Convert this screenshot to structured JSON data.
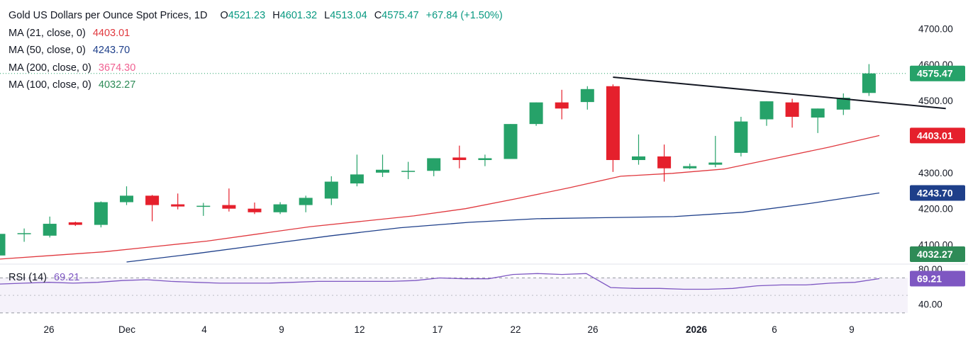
{
  "header": {
    "title": "Gold US Dollars per Ounce Spot Prices, 1D",
    "open_label": "O",
    "open": "4521.23",
    "high_label": "H",
    "high": "4601.32",
    "low_label": "L",
    "low": "4513.04",
    "close_label": "C",
    "close": "4575.47",
    "change": "+67.84 (+1.50%)"
  },
  "moving_averages": [
    {
      "label": "MA (21, close, 0)",
      "value": "4403.01",
      "color": "#e0383e"
    },
    {
      "label": "MA (50, close, 0)",
      "value": "4243.70",
      "color": "#1e3f8a"
    },
    {
      "label": "MA (200, close, 0)",
      "value": "3674.30",
      "color": "#f06292"
    },
    {
      "label": "MA (100, close, 0)",
      "value": "4032.27",
      "color": "#2e8b57"
    }
  ],
  "rsi": {
    "label": "RSI (14)",
    "value": "69.21",
    "color": "#7e57c2"
  },
  "chart_data": {
    "type": "candlestick",
    "title": "Gold US Dollars per Ounce Spot Prices, 1D",
    "up_color": "#26a269",
    "down_color": "#e5202c",
    "price_axis": {
      "ticks": [
        "4100.00",
        "4200.00",
        "4300.00",
        "4400.00",
        "4500.00",
        "4600.00",
        "4700.00"
      ],
      "range": [
        4048,
        4740
      ]
    },
    "time_axis": {
      "ticks": [
        "26",
        "Dec",
        "4",
        "9",
        "12",
        "17",
        "22",
        "26",
        "2026",
        "6",
        "9"
      ]
    },
    "candles": [
      {
        "o": 4070,
        "h": 4130,
        "l": 4065,
        "c": 4130
      },
      {
        "o": 4132,
        "h": 4145,
        "l": 4108,
        "c": 4132
      },
      {
        "o": 4125,
        "h": 4178,
        "l": 4120,
        "c": 4158
      },
      {
        "o": 4162,
        "h": 4164,
        "l": 4152,
        "c": 4155
      },
      {
        "o": 4155,
        "h": 4220,
        "l": 4148,
        "c": 4218
      },
      {
        "o": 4218,
        "h": 4262,
        "l": 4210,
        "c": 4236
      },
      {
        "o": 4236,
        "h": 4238,
        "l": 4165,
        "c": 4210
      },
      {
        "o": 4212,
        "h": 4242,
        "l": 4198,
        "c": 4206
      },
      {
        "o": 4206,
        "h": 4216,
        "l": 4180,
        "c": 4208
      },
      {
        "o": 4210,
        "h": 4256,
        "l": 4192,
        "c": 4200
      },
      {
        "o": 4200,
        "h": 4217,
        "l": 4185,
        "c": 4190
      },
      {
        "o": 4190,
        "h": 4218,
        "l": 4185,
        "c": 4212
      },
      {
        "o": 4210,
        "h": 4236,
        "l": 4190,
        "c": 4230
      },
      {
        "o": 4228,
        "h": 4290,
        "l": 4210,
        "c": 4275
      },
      {
        "o": 4270,
        "h": 4350,
        "l": 4262,
        "c": 4295
      },
      {
        "o": 4300,
        "h": 4350,
        "l": 4288,
        "c": 4308
      },
      {
        "o": 4302,
        "h": 4330,
        "l": 4282,
        "c": 4305
      },
      {
        "o": 4305,
        "h": 4340,
        "l": 4290,
        "c": 4340
      },
      {
        "o": 4342,
        "h": 4375,
        "l": 4312,
        "c": 4335
      },
      {
        "o": 4335,
        "h": 4350,
        "l": 4318,
        "c": 4340
      },
      {
        "o": 4338,
        "h": 4435,
        "l": 4338,
        "c": 4435
      },
      {
        "o": 4435,
        "h": 4495,
        "l": 4430,
        "c": 4495
      },
      {
        "o": 4495,
        "h": 4530,
        "l": 4448,
        "c": 4478
      },
      {
        "o": 4496,
        "h": 4540,
        "l": 4475,
        "c": 4532
      },
      {
        "o": 4540,
        "h": 4545,
        "l": 4302,
        "c": 4335
      },
      {
        "o": 4335,
        "h": 4406,
        "l": 4322,
        "c": 4345
      },
      {
        "o": 4345,
        "h": 4378,
        "l": 4275,
        "c": 4312
      },
      {
        "o": 4312,
        "h": 4325,
        "l": 4310,
        "c": 4318
      },
      {
        "o": 4322,
        "h": 4402,
        "l": 4315,
        "c": 4328
      },
      {
        "o": 4355,
        "h": 4455,
        "l": 4345,
        "c": 4442
      },
      {
        "o": 4448,
        "h": 4498,
        "l": 4430,
        "c": 4498
      },
      {
        "o": 4495,
        "h": 4505,
        "l": 4425,
        "c": 4455
      },
      {
        "o": 4453,
        "h": 4478,
        "l": 4410,
        "c": 4478
      },
      {
        "o": 4475,
        "h": 4520,
        "l": 4460,
        "c": 4508
      },
      {
        "o": 4521.23,
        "h": 4601.32,
        "l": 4513.04,
        "c": 4575.47
      }
    ],
    "ma21": [
      4060,
      4070,
      4080,
      4095,
      4110,
      4130,
      4150,
      4165,
      4180,
      4200,
      4228,
      4258,
      4290,
      4298,
      4310,
      4340,
      4370,
      4403
    ],
    "ma50": [
      4052,
      4075,
      4100,
      4125,
      4147,
      4162,
      4172,
      4175,
      4178,
      4190,
      4215,
      4243.7
    ],
    "ma50_start_candle": 5,
    "trendline": {
      "from_candle": 24,
      "from_value": 4565,
      "to_candle": 37,
      "to_value": 4478,
      "color": "#131722"
    },
    "rsi_axis": {
      "ticks": [
        "40.00",
        "80.00"
      ],
      "levels": [
        30,
        70
      ],
      "range": [
        25,
        85
      ]
    },
    "rsi_values": [
      63,
      64,
      65,
      64,
      65,
      67,
      68,
      66,
      65,
      64,
      64,
      64,
      65,
      66,
      66,
      66,
      66,
      67,
      70,
      69,
      69,
      74,
      75,
      74,
      75,
      59,
      58,
      58,
      57,
      57,
      58,
      61,
      62,
      62,
      64,
      65,
      69.21
    ],
    "price_tags": [
      {
        "value": "4575.47",
        "level": 4575.47,
        "color": "#26a269"
      },
      {
        "value": "4403.01",
        "level": 4403.01,
        "color": "#e5202c"
      },
      {
        "value": "4243.70",
        "level": 4243.7,
        "color": "#1e3f8a"
      },
      {
        "value": "4032.27",
        "level": 4032.27,
        "color": "#2e8b57"
      },
      {
        "value": "69.21",
        "level": 69.21,
        "color": "#7e57c2"
      }
    ]
  }
}
